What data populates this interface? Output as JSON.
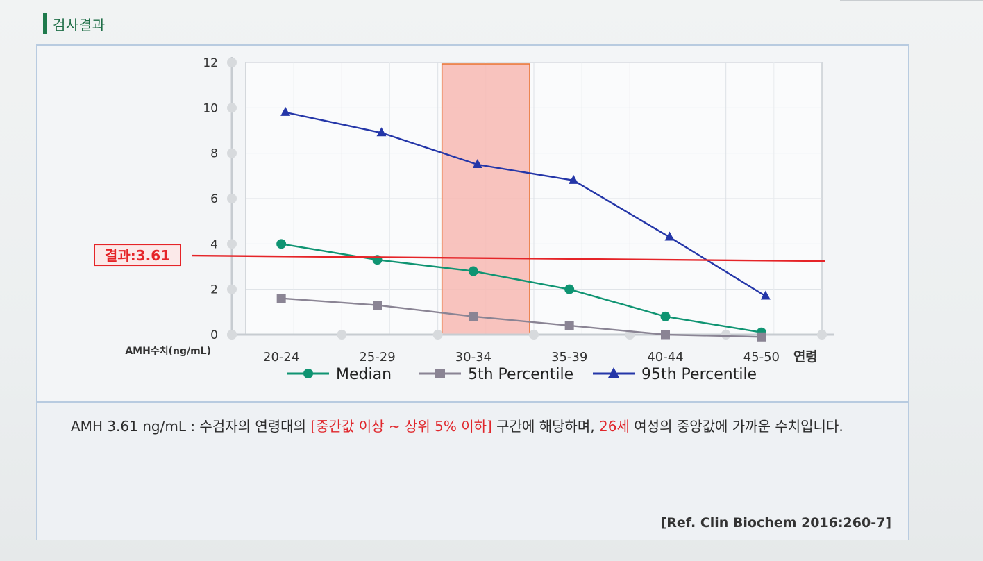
{
  "section": {
    "title": "검사결과"
  },
  "chart_data": {
    "type": "line",
    "categories": [
      "20-24",
      "25-29",
      "30-34",
      "35-39",
      "40-44",
      "45-50"
    ],
    "series": [
      {
        "name": "Median",
        "values": [
          4.0,
          3.3,
          2.8,
          2.0,
          0.8,
          0.1
        ],
        "color": "#0f9472",
        "marker": "circle"
      },
      {
        "name": "5th Percentile",
        "values": [
          1.6,
          1.3,
          0.8,
          0.4,
          0.0,
          -0.1
        ],
        "color": "#8a8494",
        "marker": "square"
      },
      {
        "name": "95th Percentile",
        "values": [
          9.8,
          8.9,
          7.5,
          6.8,
          4.3,
          1.7
        ],
        "color": "#2436a8",
        "marker": "triangle"
      }
    ],
    "ylim": [
      0,
      12
    ],
    "yticks": [
      0,
      2,
      4,
      6,
      8,
      10,
      12
    ],
    "ylabel": "AMH수치(ng/mL)",
    "xlabel": "연령",
    "highlight_category": "30-34",
    "highlight_color": "#f7b9b3",
    "result_line": {
      "label": "결과:3.61",
      "value": 3.61,
      "color": "#e52428"
    },
    "grid": true,
    "legend": "bottom"
  },
  "description": {
    "part1": "AMH  3.61 ng/mL : 수검자의 연령대의 ",
    "highlight1": "[중간값 이상 ~ 상위 5% 이하]",
    "part2": "  구간에 해당하며, ",
    "highlight2": "26세",
    "part3": " 여성의 중앙값에 가까운 수치입니다."
  },
  "reference": "[Ref. Clin Biochem 2016:260-7]"
}
